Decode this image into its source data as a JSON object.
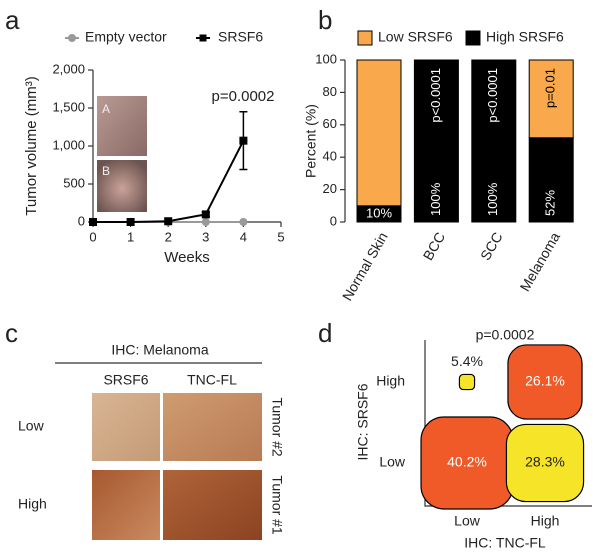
{
  "panel_labels": [
    "a",
    "b",
    "c",
    "d"
  ],
  "chart_data": [
    {
      "type": "line",
      "xlabel": "Weeks",
      "ylabel": "Tumor volume (mm³)",
      "annotation": "p=0.0002",
      "x": [
        0,
        1,
        2,
        3,
        4
      ],
      "xlim": [
        0,
        5
      ],
      "xticks": [
        0,
        1,
        2,
        3,
        4,
        5
      ],
      "ylim": [
        0,
        2000
      ],
      "yticks": [
        0,
        500,
        {
          "value": 1000,
          "label": "1,000"
        },
        {
          "value": 1500,
          "label": "1,500"
        },
        {
          "value": 2000,
          "label": "2,000"
        }
      ],
      "series": [
        {
          "name": "Empty vector",
          "color": "#999999",
          "marker": "circle",
          "values": [
            0,
            0,
            0,
            0,
            0
          ],
          "errors": [
            0,
            0,
            0,
            0,
            0
          ]
        },
        {
          "name": "SRSF6",
          "color": "#000000",
          "marker": "square",
          "values": [
            0,
            0,
            10,
            100,
            1070
          ],
          "errors": [
            0,
            0,
            5,
            30,
            380
          ]
        }
      ],
      "inset_labels": [
        "A",
        "B"
      ]
    },
    {
      "type": "stacked_bar",
      "ylabel": "Percent (%)",
      "categories": [
        "Normal Skin",
        "BCC",
        "SCC",
        "Melanoma"
      ],
      "ylim": [
        0,
        100
      ],
      "yticks": [
        0,
        20,
        40,
        60,
        80,
        100
      ],
      "series": [
        {
          "name": "Low SRSF6",
          "color": "#f9a94b",
          "values": [
            90,
            0,
            0,
            48
          ]
        },
        {
          "name": "High SRSF6",
          "color": "#000000",
          "values": [
            10,
            100,
            100,
            52
          ],
          "value_labels": [
            "10%",
            "100%",
            "100%",
            "52%"
          ]
        }
      ],
      "p_values": [
        null,
        "p<0.0001",
        "p<0.0001",
        "p=0.01"
      ]
    },
    {
      "type": "matrix",
      "title": "p=0.0002",
      "xlabel": "IHC: TNC-FL",
      "ylabel": "IHC: SRSF6",
      "x_categories": [
        "Low",
        "High"
      ],
      "y_categories": [
        "High",
        "Low"
      ],
      "values": [
        [
          5.4,
          26.1
        ],
        [
          40.2,
          28.3
        ]
      ],
      "value_labels": [
        [
          "5.4%",
          "26.1%"
        ],
        [
          "40.2%",
          "28.3%"
        ]
      ],
      "colors": [
        [
          "#f5e428",
          "#f05a28"
        ],
        [
          "#f05a28",
          "#f5e428"
        ]
      ]
    }
  ],
  "ihc": {
    "title": "IHC: Melanoma",
    "columns": [
      "SRSF6",
      "TNC-FL"
    ],
    "rows": [
      "Low",
      "High"
    ],
    "tumors": [
      "Tumor #2",
      "Tumor #1"
    ]
  }
}
